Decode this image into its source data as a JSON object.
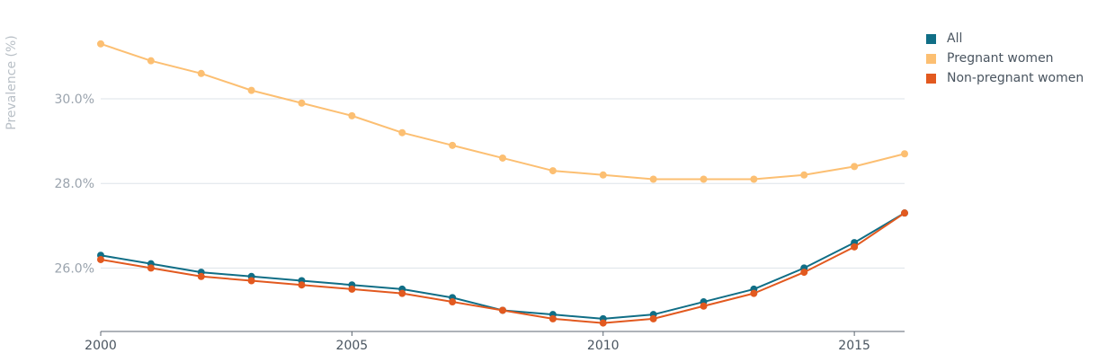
{
  "chart_data": {
    "type": "line",
    "title": "",
    "xlabel": "",
    "ylabel": "Prevalence (%)",
    "x": [
      2000,
      2001,
      2002,
      2003,
      2004,
      2005,
      2006,
      2007,
      2008,
      2009,
      2010,
      2011,
      2012,
      2013,
      2014,
      2015,
      2016
    ],
    "xlim": [
      2000,
      2016
    ],
    "x_ticks": [
      2000,
      2005,
      2010,
      2015
    ],
    "x_tick_labels": [
      "2000",
      "2005",
      "2010",
      "2015"
    ],
    "ylim": [
      24.5,
      31.7
    ],
    "y_ticks": [
      26,
      28,
      30
    ],
    "y_tick_labels": [
      "26.0%",
      "28.0%",
      "30.0%"
    ],
    "grid": true,
    "legend_position": "top-right",
    "series": [
      {
        "name": "Pregnant women",
        "color": "#fcbf72",
        "values": [
          31.3,
          30.9,
          30.6,
          30.2,
          29.9,
          29.6,
          29.2,
          28.9,
          28.6,
          28.3,
          28.2,
          28.1,
          28.1,
          28.1,
          28.2,
          28.4,
          28.7
        ]
      },
      {
        "name": "All",
        "color": "#106e86",
        "values": [
          26.3,
          26.1,
          25.9,
          25.8,
          25.7,
          25.6,
          25.5,
          25.3,
          25.0,
          24.9,
          24.8,
          24.9,
          25.2,
          25.5,
          26.0,
          26.6,
          27.3
        ]
      },
      {
        "name": "Non-pregnant women",
        "color": "#e2591f",
        "values": [
          26.2,
          26.0,
          25.8,
          25.7,
          25.6,
          25.5,
          25.4,
          25.2,
          25.0,
          24.8,
          24.7,
          24.8,
          25.1,
          25.4,
          25.9,
          26.5,
          27.3
        ]
      }
    ]
  },
  "legend": {
    "items": [
      {
        "label": "All",
        "color": "#106e86"
      },
      {
        "label": "Pregnant women",
        "color": "#fcbf72"
      },
      {
        "label": "Non-pregnant women",
        "color": "#e2591f"
      }
    ]
  }
}
